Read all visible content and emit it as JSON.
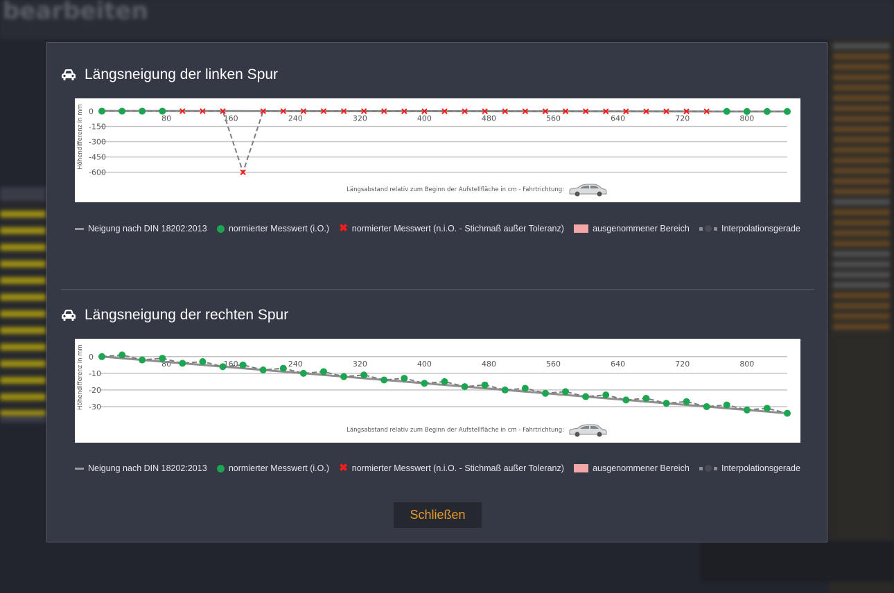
{
  "background": {
    "app_title": "bearbeiten"
  },
  "dialog": {
    "close_label": "Schließen"
  },
  "legend": {
    "din": "Neigung nach DIN 18202:2013",
    "ok": "normierter Messwert (i.O.)",
    "nok": "normierter Messwert (n.i.O. - Stichmaß außer Toleranz)",
    "excluded": "ausgenommener Bereich",
    "interp": "Interpolationsgerade"
  },
  "colors": {
    "ok_point": "#1ea552",
    "nok_point": "#ff1a1a",
    "excluded_area": "#f4a7a7",
    "accent": "#e89a2c"
  },
  "icons": {
    "section": "car-icon",
    "direction": "car-side-icon"
  },
  "chart_data": [
    {
      "type": "line",
      "title": "Längsneigung der linken Spur",
      "xlabel": "Längsabstand relativ zum Beginn der Aufstellfläche in cm - Fahrtrichtung:",
      "ylabel": "Höhendifferenz in mm",
      "xlim": [
        0,
        850
      ],
      "ylim": [
        -650,
        10
      ],
      "x_ticks": [
        80,
        160,
        240,
        320,
        400,
        480,
        560,
        640,
        720,
        800
      ],
      "y_ticks": [
        0,
        -150,
        -300,
        -450,
        -600
      ],
      "y_tick_labels": [
        "0",
        "-150",
        "-300",
        "-450",
        "-600"
      ],
      "grid": true,
      "series": [
        {
          "name": "Neigung nach DIN 18202:2013",
          "kind": "line",
          "x": [
            0,
            850
          ],
          "y": [
            2,
            -3
          ]
        },
        {
          "name": "Interpolationsgerade",
          "kind": "dashed",
          "x": [
            0,
            25,
            50,
            75,
            100,
            125,
            150,
            175,
            200,
            225,
            250,
            275,
            300,
            325,
            350,
            375,
            400,
            425,
            450,
            475,
            500,
            525,
            550,
            575,
            600,
            625,
            650,
            675,
            700,
            725,
            750,
            775,
            800,
            825,
            850
          ],
          "y": [
            0,
            0,
            0,
            0,
            0,
            0,
            0,
            -600,
            0,
            0,
            0,
            0,
            0,
            0,
            0,
            0,
            0,
            0,
            0,
            0,
            0,
            0,
            0,
            0,
            0,
            0,
            0,
            0,
            0,
            0,
            0,
            0,
            0,
            0,
            0
          ]
        },
        {
          "name": "normierter Messwert (i.O.)",
          "kind": "ok",
          "x": [
            0,
            25,
            50,
            75,
            775,
            800,
            825,
            850
          ],
          "y": [
            0,
            0,
            0,
            0,
            -2,
            -3,
            -3,
            -3
          ]
        },
        {
          "name": "normierter Messwert (n.i.O. - Stichmaß außer Toleranz)",
          "kind": "nok",
          "x": [
            100,
            125,
            150,
            175,
            200,
            225,
            250,
            275,
            300,
            325,
            350,
            375,
            400,
            425,
            450,
            475,
            500,
            525,
            550,
            575,
            600,
            625,
            650,
            675,
            700,
            725,
            750
          ],
          "y": [
            0,
            0,
            0,
            -600,
            0,
            0,
            0,
            0,
            0,
            0,
            0,
            -1,
            -1,
            -1,
            -1,
            -1,
            -1,
            -1,
            -1,
            -1,
            -1,
            -2,
            -2,
            -2,
            -2,
            -2,
            -2
          ]
        }
      ]
    },
    {
      "type": "line",
      "title": "Längsneigung der rechten Spur",
      "xlabel": "Längsabstand relativ zum Beginn der Aufstellfläche in cm - Fahrtrichtung:",
      "ylabel": "Höhendifferenz in mm",
      "xlim": [
        0,
        850
      ],
      "ylim": [
        -35,
        2
      ],
      "x_ticks": [
        80,
        160,
        240,
        320,
        400,
        480,
        560,
        640,
        720,
        800
      ],
      "y_ticks": [
        0,
        -10,
        -20,
        -30
      ],
      "y_tick_labels": [
        "0",
        "-10",
        "-20",
        "-30"
      ],
      "grid": true,
      "series": [
        {
          "name": "Neigung nach DIN 18202:2013",
          "kind": "line",
          "x": [
            0,
            850
          ],
          "y": [
            0,
            -34
          ]
        },
        {
          "name": "Interpolationsgerade",
          "kind": "dashed",
          "x": [
            0,
            25,
            50,
            75,
            100,
            125,
            150,
            175,
            200,
            225,
            250,
            275,
            300,
            325,
            350,
            375,
            400,
            425,
            450,
            475,
            500,
            525,
            550,
            575,
            600,
            625,
            650,
            675,
            700,
            725,
            750,
            775,
            800,
            825,
            850
          ],
          "y": [
            0,
            1,
            -2,
            -1,
            -4,
            -3,
            -6,
            -5,
            -8,
            -7,
            -10,
            -9,
            -12,
            -11,
            -14,
            -13,
            -16,
            -15,
            -18,
            -17,
            -20,
            -19,
            -22,
            -21,
            -24,
            -23,
            -26,
            -25,
            -28,
            -27,
            -30,
            -29,
            -32,
            -31,
            -34
          ]
        },
        {
          "name": "normierter Messwert (i.O.)",
          "kind": "ok",
          "x": [
            0,
            25,
            50,
            75,
            100,
            125,
            150,
            175,
            200,
            225,
            250,
            275,
            300,
            325,
            350,
            375,
            400,
            425,
            450,
            475,
            500,
            525,
            550,
            575,
            600,
            625,
            650,
            675,
            700,
            725,
            750,
            775,
            800,
            825,
            850
          ],
          "y": [
            0,
            1,
            -2,
            -1,
            -4,
            -3,
            -6,
            -5,
            -8,
            -7,
            -10,
            -9,
            -12,
            -11,
            -14,
            -13,
            -16,
            -15,
            -18,
            -17,
            -20,
            -19,
            -22,
            -21,
            -24,
            -23,
            -26,
            -25,
            -28,
            -27,
            -30,
            -29,
            -32,
            -31,
            -34
          ]
        },
        {
          "name": "normierter Messwert (n.i.O. - Stichmaß außer Toleranz)",
          "kind": "nok",
          "x": [],
          "y": []
        }
      ]
    }
  ]
}
